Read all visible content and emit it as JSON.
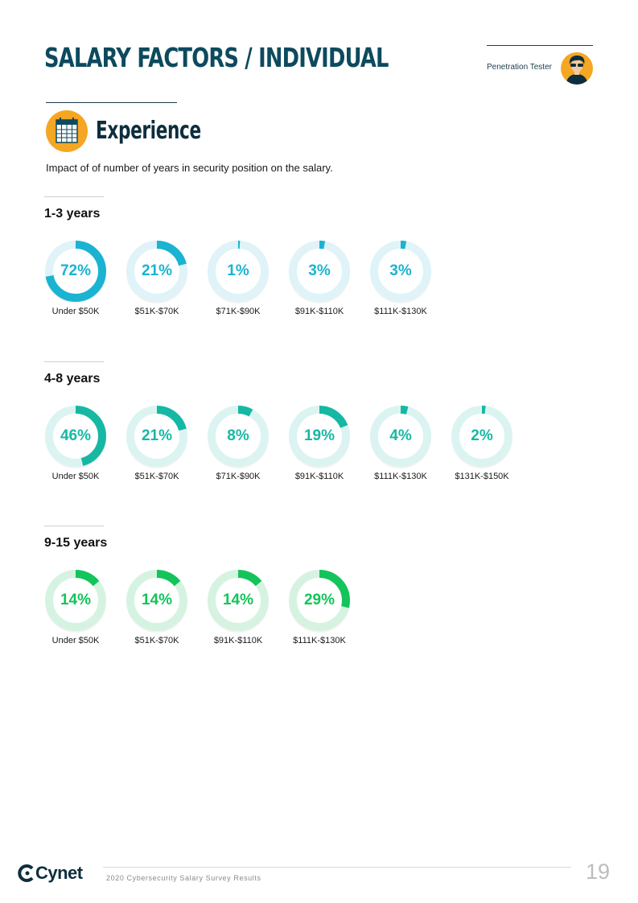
{
  "header": {
    "title": "SALARY FACTORS / INDIVIDUAL",
    "role_label": "Penetration Tester",
    "role_icon": "person-avatar-icon"
  },
  "section": {
    "icon": "calendar-icon",
    "title": "Experience",
    "subtitle": "Impact of of number of years in security position on the salary."
  },
  "chart_data": [
    {
      "type": "donut",
      "title": "1-3 years",
      "color": "#1ab3d1",
      "track_color": "#dff3f8",
      "categories": [
        "Under $50K",
        "$51K-$70K",
        "$71K-$90K",
        "$91K-$110K",
        "$111K-$130K"
      ],
      "values": [
        72,
        21,
        1,
        3,
        3
      ],
      "labels": [
        "72%",
        "21%",
        "1%",
        "3%",
        "3%"
      ]
    },
    {
      "type": "donut",
      "title": "4-8 years",
      "color": "#16b8a4",
      "track_color": "#dcf4f1",
      "categories": [
        "Under $50K",
        "$51K-$70K",
        "$71K-$90K",
        "$91K-$110K",
        "$111K-$130K",
        "$131K-$150K"
      ],
      "values": [
        46,
        21,
        8,
        19,
        4,
        2
      ],
      "labels": [
        "46%",
        "21%",
        "8%",
        "19%",
        "4%",
        "2%"
      ]
    },
    {
      "type": "donut",
      "title": "9-15 years",
      "color": "#13c45a",
      "track_color": "#d6f3e1",
      "categories": [
        "Under $50K",
        "$51K-$70K",
        "$91K-$110K",
        "$111K-$130K"
      ],
      "values": [
        14,
        14,
        14,
        29
      ],
      "labels": [
        "14%",
        "14%",
        "14%",
        "29%"
      ]
    }
  ],
  "footer": {
    "logo_text": "Cynet",
    "report_title": "2020 Cybersecurity Salary Survey Results",
    "page_number": "19"
  }
}
